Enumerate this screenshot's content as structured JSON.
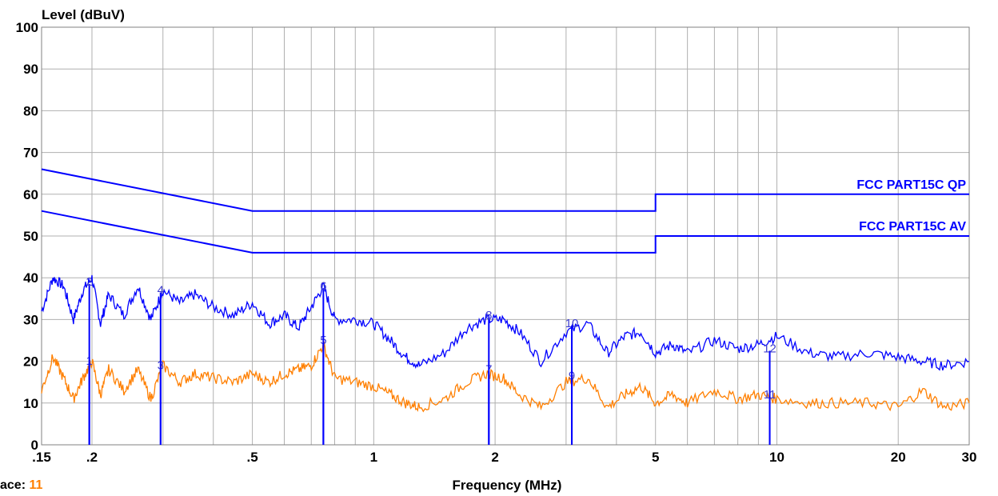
{
  "footer": {
    "trace_label": "ace:",
    "trace_number": "11"
  },
  "chart_data": {
    "type": "line",
    "xlabel": "Frequency (MHz)",
    "ylabel": "Level (dBuV)",
    "x_scale": "log",
    "xlim": [
      0.15,
      30
    ],
    "ylim": [
      0,
      100
    ],
    "grid": true,
    "x_ticks": [
      {
        "value": 0.15,
        "label": ".15"
      },
      {
        "value": 0.2,
        "label": ".2"
      },
      {
        "value": 0.5,
        "label": ".5"
      },
      {
        "value": 1,
        "label": "1"
      },
      {
        "value": 2,
        "label": "2"
      },
      {
        "value": 5,
        "label": "5"
      },
      {
        "value": 10,
        "label": "10"
      },
      {
        "value": 20,
        "label": "20"
      },
      {
        "value": 30,
        "label": "30"
      }
    ],
    "y_ticks": [
      0,
      10,
      20,
      30,
      40,
      50,
      60,
      70,
      80,
      90,
      100
    ],
    "colors": {
      "limit": "#0000ff",
      "peak_trace": "#0000ff",
      "avg_trace": "#ff7f00",
      "marker": "#0000ff"
    },
    "limit_lines": [
      {
        "name": "FCC PART15C QP",
        "points": [
          [
            0.15,
            66
          ],
          [
            0.5,
            56
          ],
          [
            5,
            56
          ],
          [
            5,
            60
          ],
          [
            30,
            60
          ]
        ]
      },
      {
        "name": "FCC PART15C AV",
        "points": [
          [
            0.15,
            56
          ],
          [
            0.5,
            46
          ],
          [
            5,
            46
          ],
          [
            5,
            50
          ],
          [
            30,
            50
          ]
        ]
      }
    ],
    "series": [
      {
        "role": "peak",
        "color": "#0000ff",
        "x": [
          0.15,
          0.16,
          0.17,
          0.18,
          0.19,
          0.2,
          0.21,
          0.22,
          0.24,
          0.26,
          0.28,
          0.3,
          0.33,
          0.36,
          0.4,
          0.45,
          0.5,
          0.55,
          0.6,
          0.65,
          0.7,
          0.75,
          0.8,
          0.9,
          1.0,
          1.1,
          1.2,
          1.3,
          1.5,
          1.7,
          1.9,
          2.1,
          2.3,
          2.6,
          3.0,
          3.4,
          3.8,
          4.2,
          4.6,
          5.0,
          5.5,
          6.0,
          7.0,
          8.0,
          9.0,
          10.0,
          12.0,
          14.0,
          17.0,
          20.0,
          23.0,
          26.0,
          30.0
        ],
        "y": [
          32,
          40,
          38,
          30,
          37,
          40,
          29,
          36,
          31,
          38,
          30,
          37,
          34,
          36,
          33,
          31,
          34,
          29,
          31,
          28,
          33,
          38,
          30,
          30,
          29,
          25,
          21,
          19,
          22,
          28,
          30,
          30,
          27,
          20,
          27,
          29,
          22,
          26,
          27,
          22,
          24,
          22,
          25,
          23,
          24,
          26,
          22,
          21,
          22,
          21,
          20,
          19,
          20
        ]
      },
      {
        "role": "average",
        "color": "#ff7f00",
        "x": [
          0.15,
          0.16,
          0.17,
          0.18,
          0.19,
          0.2,
          0.21,
          0.22,
          0.24,
          0.26,
          0.28,
          0.3,
          0.33,
          0.36,
          0.4,
          0.45,
          0.5,
          0.55,
          0.6,
          0.65,
          0.7,
          0.75,
          0.8,
          0.9,
          1.0,
          1.1,
          1.2,
          1.3,
          1.5,
          1.7,
          1.9,
          2.1,
          2.3,
          2.6,
          3.0,
          3.4,
          3.8,
          4.2,
          4.6,
          5.0,
          5.5,
          6.0,
          7.0,
          8.0,
          9.0,
          10.0,
          12.0,
          14.0,
          17.0,
          20.0,
          23.0,
          26.0,
          30.0
        ],
        "y": [
          13,
          21,
          16,
          11,
          16,
          20,
          12,
          18,
          13,
          18,
          11,
          19,
          15,
          17,
          16,
          15,
          17,
          15,
          17,
          18,
          19,
          24,
          16,
          15,
          14,
          12,
          10,
          9,
          11,
          15,
          17,
          16,
          12,
          9,
          15,
          16,
          9,
          12,
          14,
          10,
          12,
          10,
          13,
          11,
          12,
          11,
          10,
          10,
          10,
          9,
          13,
          9,
          10
        ]
      }
    ],
    "markers": [
      {
        "label": "1",
        "x": 0.197,
        "y": 19.5
      },
      {
        "label": "2",
        "x": 0.197,
        "y": 38.5
      },
      {
        "label": "3",
        "x": 0.296,
        "y": 18.5
      },
      {
        "label": "4",
        "x": 0.296,
        "y": 36.5
      },
      {
        "label": "5",
        "x": 0.75,
        "y": 24.5
      },
      {
        "label": "6",
        "x": 0.75,
        "y": 37.5
      },
      {
        "label": "7",
        "x": 1.93,
        "y": 17.5
      },
      {
        "label": "8",
        "x": 1.93,
        "y": 30.5
      },
      {
        "label": "9",
        "x": 3.1,
        "y": 16.0
      },
      {
        "label": "10",
        "x": 3.1,
        "y": 28.5
      },
      {
        "label": "11",
        "x": 9.6,
        "y": 11.5
      },
      {
        "label": "12",
        "x": 9.6,
        "y": 22.5
      }
    ]
  }
}
